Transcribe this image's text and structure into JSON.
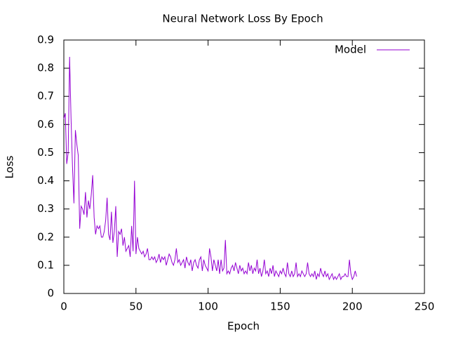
{
  "chart_data": {
    "type": "line",
    "title": "Neural Network Loss By Epoch",
    "xlabel": "Epoch",
    "ylabel": "Loss",
    "x": [
      0,
      1,
      2,
      3,
      4,
      5,
      6,
      7,
      8,
      9,
      10,
      11,
      12,
      13,
      14,
      15,
      16,
      17,
      18,
      19,
      20,
      21,
      22,
      23,
      24,
      25,
      26,
      27,
      28,
      29,
      30,
      31,
      32,
      33,
      34,
      35,
      36,
      37,
      38,
      39,
      40,
      41,
      42,
      43,
      44,
      45,
      46,
      47,
      48,
      49,
      50,
      51,
      52,
      53,
      54,
      55,
      56,
      57,
      58,
      59,
      60,
      61,
      62,
      63,
      64,
      65,
      66,
      67,
      68,
      69,
      70,
      71,
      72,
      73,
      74,
      75,
      76,
      77,
      78,
      79,
      80,
      81,
      82,
      83,
      84,
      85,
      86,
      87,
      88,
      89,
      90,
      91,
      92,
      93,
      94,
      95,
      96,
      97,
      98,
      99,
      100,
      101,
      102,
      103,
      104,
      105,
      106,
      107,
      108,
      109,
      110,
      111,
      112,
      113,
      114,
      115,
      116,
      117,
      118,
      119,
      120,
      121,
      122,
      123,
      124,
      125,
      126,
      127,
      128,
      129,
      130,
      131,
      132,
      133,
      134,
      135,
      136,
      137,
      138,
      139,
      140,
      141,
      142,
      143,
      144,
      145,
      146,
      147,
      148,
      149,
      150,
      151,
      152,
      153,
      154,
      155,
      156,
      157,
      158,
      159,
      160,
      161,
      162,
      163,
      164,
      165,
      166,
      167,
      168,
      169,
      170,
      171,
      172,
      173,
      174,
      175,
      176,
      177,
      178,
      179,
      180,
      181,
      182,
      183,
      184,
      185,
      186,
      187,
      188,
      189,
      190,
      191,
      192,
      193,
      194,
      195,
      196,
      197,
      198,
      199,
      200,
      201,
      202,
      203
    ],
    "series": [
      {
        "name": "Model",
        "color": "#9400d3",
        "values": [
          0.62,
          0.64,
          0.46,
          0.5,
          0.84,
          0.62,
          0.45,
          0.32,
          0.58,
          0.53,
          0.49,
          0.23,
          0.31,
          0.3,
          0.28,
          0.36,
          0.27,
          0.33,
          0.3,
          0.35,
          0.42,
          0.27,
          0.21,
          0.24,
          0.23,
          0.24,
          0.2,
          0.2,
          0.22,
          0.26,
          0.34,
          0.21,
          0.19,
          0.29,
          0.18,
          0.22,
          0.31,
          0.13,
          0.22,
          0.21,
          0.23,
          0.17,
          0.2,
          0.15,
          0.16,
          0.17,
          0.13,
          0.24,
          0.15,
          0.4,
          0.14,
          0.2,
          0.16,
          0.15,
          0.14,
          0.15,
          0.13,
          0.14,
          0.16,
          0.12,
          0.12,
          0.13,
          0.12,
          0.13,
          0.11,
          0.12,
          0.14,
          0.11,
          0.13,
          0.12,
          0.13,
          0.1,
          0.12,
          0.14,
          0.13,
          0.11,
          0.1,
          0.12,
          0.16,
          0.11,
          0.12,
          0.1,
          0.11,
          0.12,
          0.09,
          0.13,
          0.11,
          0.1,
          0.12,
          0.08,
          0.11,
          0.12,
          0.1,
          0.09,
          0.12,
          0.13,
          0.08,
          0.12,
          0.1,
          0.09,
          0.08,
          0.16,
          0.13,
          0.08,
          0.12,
          0.1,
          0.08,
          0.12,
          0.07,
          0.12,
          0.08,
          0.09,
          0.19,
          0.07,
          0.08,
          0.07,
          0.09,
          0.1,
          0.08,
          0.11,
          0.09,
          0.07,
          0.1,
          0.08,
          0.09,
          0.07,
          0.08,
          0.07,
          0.11,
          0.08,
          0.1,
          0.07,
          0.09,
          0.08,
          0.12,
          0.07,
          0.09,
          0.06,
          0.08,
          0.12,
          0.07,
          0.08,
          0.06,
          0.09,
          0.07,
          0.1,
          0.06,
          0.08,
          0.07,
          0.06,
          0.08,
          0.07,
          0.09,
          0.07,
          0.06,
          0.11,
          0.07,
          0.06,
          0.08,
          0.06,
          0.07,
          0.11,
          0.06,
          0.07,
          0.06,
          0.08,
          0.07,
          0.06,
          0.07,
          0.11,
          0.07,
          0.06,
          0.07,
          0.06,
          0.08,
          0.05,
          0.07,
          0.06,
          0.09,
          0.07,
          0.06,
          0.08,
          0.06,
          0.07,
          0.05,
          0.06,
          0.07,
          0.05,
          0.06,
          0.05,
          0.06,
          0.07,
          0.05,
          0.06,
          0.06,
          0.07,
          0.06,
          0.06,
          0.12,
          0.07,
          0.05,
          0.06,
          0.08,
          0.06
        ]
      }
    ],
    "xlim": [
      0,
      250
    ],
    "ylim": [
      0,
      0.9
    ],
    "xticks": [
      0,
      50,
      100,
      150,
      200,
      250
    ],
    "yticks": [
      0,
      0.1,
      0.2,
      0.3,
      0.4,
      0.5,
      0.6,
      0.7,
      0.8,
      0.9
    ],
    "grid": false,
    "legend": "top-right"
  }
}
